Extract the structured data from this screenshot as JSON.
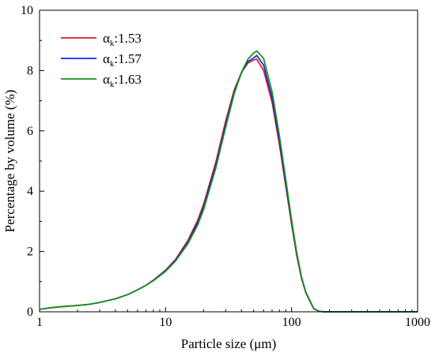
{
  "chart_data": {
    "type": "line",
    "xlabel": "Particle size (μm)",
    "ylabel": "Percentage by volume (%)",
    "xscale": "log",
    "xlim": [
      1,
      1000
    ],
    "ylim": [
      0,
      10
    ],
    "xticks": [
      "1",
      "10",
      "100",
      "1000"
    ],
    "yticks": [
      "0",
      "2",
      "4",
      "6",
      "8",
      "10"
    ],
    "grid": false,
    "legend_position": "top-left",
    "series": [
      {
        "name": "α",
        "name_sub": "k",
        "name_value": ":1.53",
        "color": "#e8141e",
        "x": [
          1,
          1.2,
          1.5,
          2,
          2.5,
          3,
          4,
          5,
          6,
          7,
          8,
          10,
          12,
          15,
          18,
          20,
          25,
          30,
          35,
          40,
          45,
          50,
          53,
          60,
          70,
          80,
          90,
          100,
          110,
          120,
          130,
          150,
          165,
          180,
          200,
          300,
          500,
          1000
        ],
        "values": [
          0.08,
          0.13,
          0.17,
          0.21,
          0.25,
          0.31,
          0.43,
          0.57,
          0.73,
          0.88,
          1.05,
          1.38,
          1.74,
          2.36,
          3.04,
          3.56,
          4.95,
          6.33,
          7.35,
          7.94,
          8.25,
          8.35,
          8.38,
          8.0,
          6.95,
          5.55,
          4.15,
          2.9,
          1.85,
          1.1,
          0.62,
          0.1,
          0.02,
          0.0,
          0.0,
          0.0,
          0.0,
          0.0
        ]
      },
      {
        "name": "α",
        "name_sub": "k",
        "name_value": ":1.57",
        "color": "#1424e6",
        "x": [
          1,
          1.2,
          1.5,
          2,
          2.5,
          3,
          4,
          5,
          6,
          7,
          8,
          10,
          12,
          15,
          18,
          20,
          25,
          30,
          35,
          40,
          45,
          50,
          53,
          60,
          70,
          80,
          90,
          100,
          110,
          120,
          130,
          150,
          165,
          180,
          200,
          300,
          500,
          1000
        ],
        "values": [
          0.08,
          0.13,
          0.17,
          0.21,
          0.25,
          0.31,
          0.43,
          0.57,
          0.73,
          0.88,
          1.04,
          1.36,
          1.71,
          2.3,
          2.96,
          3.47,
          4.85,
          6.22,
          7.28,
          7.92,
          8.3,
          8.42,
          8.5,
          8.18,
          7.1,
          5.68,
          4.25,
          2.97,
          1.9,
          1.12,
          0.63,
          0.1,
          0.02,
          0.0,
          0.0,
          0.0,
          0.0,
          0.0
        ]
      },
      {
        "name": "α",
        "name_sub": "k",
        "name_value": ":1.63",
        "color": "#139413",
        "x": [
          1,
          1.2,
          1.5,
          2,
          2.5,
          3,
          4,
          5,
          6,
          7,
          8,
          10,
          12,
          15,
          18,
          20,
          25,
          30,
          35,
          40,
          45,
          50,
          53,
          60,
          70,
          80,
          90,
          100,
          110,
          120,
          130,
          150,
          165,
          180,
          200,
          300,
          500,
          1000
        ],
        "values": [
          0.08,
          0.13,
          0.17,
          0.21,
          0.25,
          0.31,
          0.43,
          0.57,
          0.73,
          0.88,
          1.03,
          1.34,
          1.68,
          2.25,
          2.88,
          3.38,
          4.75,
          6.12,
          7.22,
          7.94,
          8.38,
          8.58,
          8.65,
          8.4,
          7.3,
          5.85,
          4.38,
          3.05,
          1.95,
          1.15,
          0.65,
          0.11,
          0.02,
          0.0,
          0.0,
          0.0,
          0.0,
          0.0
        ]
      }
    ]
  }
}
